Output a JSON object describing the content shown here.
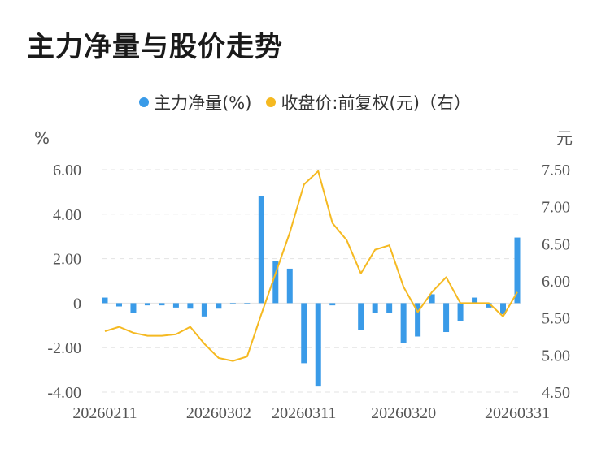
{
  "title": "主力净量与股价走势",
  "legend": [
    {
      "label": "主力净量(%)",
      "color": "#3a9be8"
    },
    {
      "label": "收盘价:前复权(元)（右）",
      "color": "#f5b921"
    }
  ],
  "chart_data": {
    "type": "bar",
    "left_unit": "%",
    "right_unit": "元",
    "left_ticks": [
      "6.00",
      "4.00",
      "2.00",
      "0",
      "-2.00",
      "-4.00"
    ],
    "right_ticks": [
      "7.50",
      "7.00",
      "6.50",
      "6.00",
      "5.50",
      "5.00",
      "4.50"
    ],
    "x_tick_labels": [
      "20260211",
      "20260302",
      "20260311",
      "20260320",
      "20260331"
    ],
    "ylim_left": [
      -4,
      6
    ],
    "ylim_right": [
      4.5,
      7.5
    ],
    "series": [
      {
        "name": "主力净量(%)",
        "type": "bar",
        "axis": "left",
        "color": "#3a9be8",
        "values": [
          0.25,
          -0.15,
          -0.45,
          -0.1,
          -0.1,
          -0.2,
          -0.25,
          -0.6,
          -0.25,
          -0.05,
          -0.05,
          4.8,
          1.9,
          1.55,
          -2.7,
          -3.75,
          -0.1,
          0.0,
          -1.2,
          -0.45,
          -0.45,
          -1.8,
          -1.5,
          0.4,
          -1.3,
          -0.8,
          0.25,
          -0.2,
          -0.5,
          2.95
        ]
      },
      {
        "name": "收盘价:前复权(元)（右）",
        "type": "line",
        "axis": "right",
        "color": "#f5b921",
        "values": [
          5.32,
          5.38,
          5.3,
          5.26,
          5.26,
          5.28,
          5.38,
          5.15,
          4.96,
          4.92,
          4.98,
          5.55,
          6.1,
          6.65,
          7.3,
          7.48,
          6.78,
          6.55,
          6.1,
          6.42,
          6.48,
          5.92,
          5.58,
          5.85,
          6.05,
          5.7,
          5.7,
          5.7,
          5.52,
          5.85
        ]
      }
    ]
  }
}
